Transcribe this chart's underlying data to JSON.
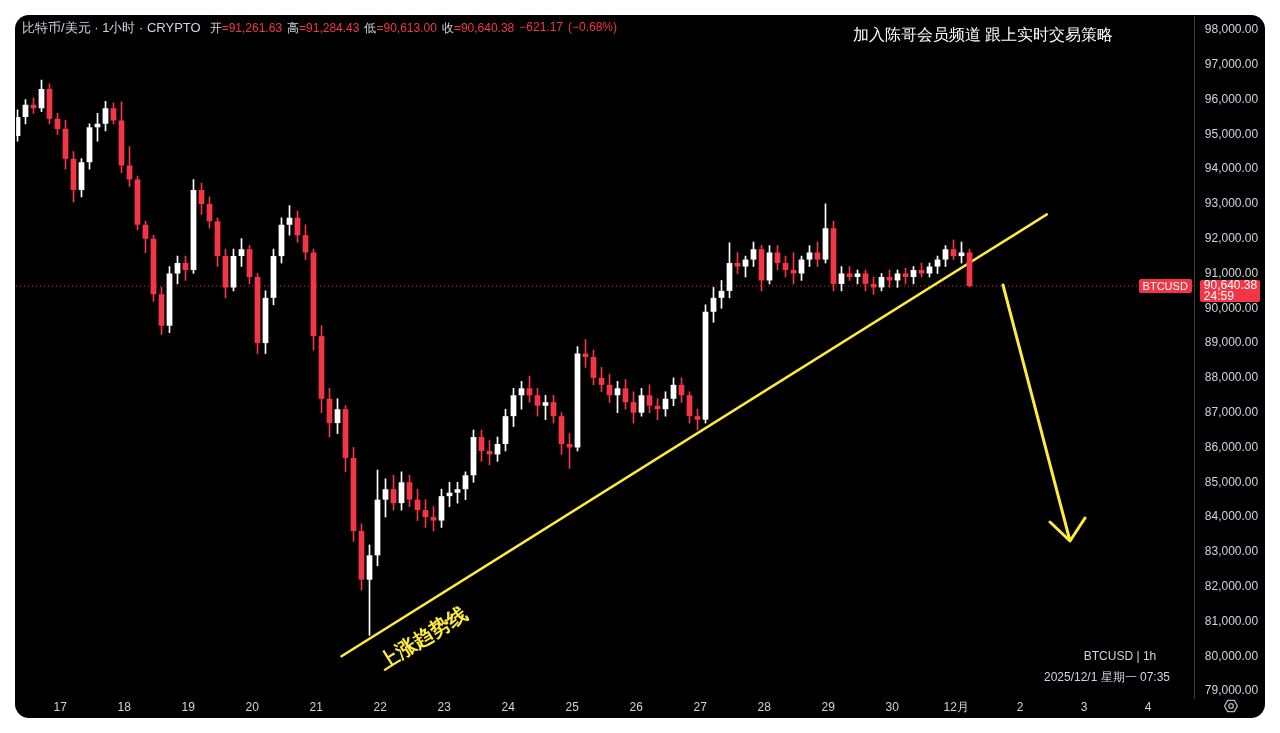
{
  "chart_data": {
    "type": "candlestick",
    "title": "比特币/美元 · 1小时 · CRYPTO",
    "subtitle": "开=91,261.63 高=91,284.43 低=90,613.00 收=90,640.38 −621.17 (−0.68%)",
    "x": [
      "2025-11-16T08:00",
      "2025-11-16T11:00",
      "2025-11-16T14:00",
      "2025-11-16T17:00",
      "2025-11-16T20:00",
      "2025-11-16T23:00",
      "2025-11-17T02:00",
      "2025-11-17T05:00",
      "2025-11-17T08:00",
      "2025-11-17T11:00",
      "2025-11-17T14:00",
      "2025-11-17T17:00",
      "2025-11-17T20:00",
      "2025-11-17T23:00",
      "2025-11-18T02:00",
      "2025-11-18T05:00",
      "2025-11-18T08:00",
      "2025-11-18T11:00",
      "2025-11-18T14:00",
      "2025-11-18T17:00",
      "2025-11-18T20:00",
      "2025-11-18T23:00",
      "2025-11-19T02:00",
      "2025-11-19T05:00",
      "2025-11-19T08:00",
      "2025-11-19T11:00",
      "2025-11-19T14:00",
      "2025-11-19T17:00",
      "2025-11-19T20:00",
      "2025-11-19T23:00",
      "2025-11-20T02:00",
      "2025-11-20T05:00",
      "2025-11-20T08:00",
      "2025-11-20T11:00",
      "2025-11-20T14:00",
      "2025-11-20T17:00",
      "2025-11-20T20:00",
      "2025-11-20T23:00",
      "2025-11-21T02:00",
      "2025-11-21T05:00",
      "2025-11-21T08:00",
      "2025-11-21T11:00",
      "2025-11-21T14:00",
      "2025-11-21T17:00",
      "2025-11-21T20:00",
      "2025-11-21T23:00",
      "2025-11-22T02:00",
      "2025-11-22T05:00",
      "2025-11-22T08:00",
      "2025-11-22T11:00",
      "2025-11-22T14:00",
      "2025-11-22T17:00",
      "2025-11-22T20:00",
      "2025-11-22T23:00",
      "2025-11-23T02:00",
      "2025-11-23T05:00",
      "2025-11-23T08:00",
      "2025-11-23T11:00",
      "2025-11-23T14:00",
      "2025-11-23T17:00",
      "2025-11-23T20:00",
      "2025-11-23T23:00",
      "2025-11-24T02:00",
      "2025-11-24T05:00",
      "2025-11-24T08:00",
      "2025-11-24T11:00",
      "2025-11-24T14:00",
      "2025-11-24T17:00",
      "2025-11-24T20:00",
      "2025-11-24T23:00",
      "2025-11-25T02:00",
      "2025-11-25T05:00",
      "2025-11-25T08:00",
      "2025-11-25T11:00",
      "2025-11-25T14:00",
      "2025-11-25T17:00",
      "2025-11-25T20:00",
      "2025-11-25T23:00",
      "2025-11-26T02:00",
      "2025-11-26T05:00",
      "2025-11-26T08:00",
      "2025-11-26T11:00",
      "2025-11-26T14:00",
      "2025-11-26T17:00",
      "2025-11-26T20:00",
      "2025-11-26T23:00",
      "2025-11-27T02:00",
      "2025-11-27T05:00",
      "2025-11-27T08:00",
      "2025-11-27T11:00",
      "2025-11-27T14:00",
      "2025-11-27T17:00",
      "2025-11-27T20:00",
      "2025-11-27T23:00",
      "2025-11-28T02:00",
      "2025-11-28T05:00",
      "2025-11-28T08:00",
      "2025-11-28T11:00",
      "2025-11-28T14:00",
      "2025-11-28T17:00",
      "2025-11-28T20:00",
      "2025-11-28T23:00",
      "2025-11-29T02:00",
      "2025-11-29T05:00",
      "2025-11-29T08:00",
      "2025-11-29T11:00",
      "2025-11-29T14:00",
      "2025-11-29T17:00",
      "2025-11-29T20:00",
      "2025-11-29T23:00",
      "2025-11-30T02:00",
      "2025-11-30T05:00",
      "2025-11-30T08:00",
      "2025-11-30T11:00",
      "2025-11-30T14:00",
      "2025-11-30T17:00",
      "2025-11-30T20:00",
      "2025-11-30T23:00",
      "2025-12-01T02:00",
      "2025-12-01T05:00"
    ],
    "ohlc": [
      [
        94950,
        95700,
        94800,
        95500
      ],
      [
        95500,
        96000,
        95300,
        95850
      ],
      [
        95850,
        96050,
        95600,
        95750
      ],
      [
        95750,
        96560,
        95650,
        96300
      ],
      [
        96300,
        96450,
        95300,
        95450
      ],
      [
        95450,
        95600,
        95000,
        95150
      ],
      [
        95150,
        95400,
        94000,
        94300
      ],
      [
        94300,
        94500,
        93050,
        93400
      ],
      [
        93400,
        94300,
        93200,
        94200
      ],
      [
        94200,
        95300,
        94000,
        95200
      ],
      [
        95200,
        95600,
        94800,
        95300
      ],
      [
        95300,
        95950,
        95100,
        95750
      ],
      [
        95750,
        95900,
        95300,
        95400
      ],
      [
        95400,
        95930,
        93900,
        94100
      ],
      [
        94100,
        94650,
        93500,
        93700
      ],
      [
        93700,
        93800,
        92250,
        92400
      ],
      [
        92400,
        92500,
        91600,
        92000
      ],
      [
        92000,
        92100,
        90200,
        90400
      ],
      [
        90400,
        90600,
        89250,
        89500
      ],
      [
        89500,
        91200,
        89300,
        91000
      ],
      [
        91000,
        91500,
        90700,
        91300
      ],
      [
        91300,
        91500,
        90800,
        91100
      ],
      [
        91100,
        93700,
        91000,
        93400
      ],
      [
        93400,
        93600,
        92700,
        93000
      ],
      [
        93000,
        93200,
        92300,
        92500
      ],
      [
        92500,
        92600,
        91200,
        91500
      ],
      [
        91500,
        91700,
        90300,
        90600
      ],
      [
        90600,
        91700,
        90500,
        91500
      ],
      [
        91500,
        92000,
        91200,
        91700
      ],
      [
        91700,
        91800,
        90700,
        90900
      ],
      [
        90900,
        91000,
        88700,
        89000
      ],
      [
        89000,
        90500,
        88700,
        90300
      ],
      [
        90300,
        91700,
        90100,
        91500
      ],
      [
        91500,
        92600,
        91300,
        92400
      ],
      [
        92400,
        92950,
        92100,
        92600
      ],
      [
        92600,
        92800,
        91900,
        92100
      ],
      [
        92100,
        92400,
        91400,
        91600
      ],
      [
        91600,
        91700,
        88800,
        89200
      ],
      [
        89200,
        89500,
        87000,
        87400
      ],
      [
        87400,
        87700,
        86300,
        86700
      ],
      [
        86700,
        87400,
        86400,
        87100
      ],
      [
        87100,
        87200,
        85300,
        85700
      ],
      [
        85700,
        86000,
        83300,
        83600
      ],
      [
        83600,
        83800,
        81900,
        82200
      ],
      [
        82200,
        83200,
        80600,
        82900
      ],
      [
        82900,
        85350,
        82600,
        84500
      ],
      [
        84500,
        85100,
        84000,
        84800
      ],
      [
        84800,
        85200,
        84200,
        84400
      ],
      [
        84400,
        85300,
        84200,
        85000
      ],
      [
        85000,
        85200,
        84300,
        84500
      ],
      [
        84500,
        84800,
        83900,
        84200
      ],
      [
        84200,
        84500,
        83700,
        84000
      ],
      [
        84000,
        84300,
        83600,
        83900
      ],
      [
        83900,
        84800,
        83700,
        84600
      ],
      [
        84600,
        85000,
        84300,
        84700
      ],
      [
        84700,
        85000,
        84400,
        84800
      ],
      [
        84800,
        85300,
        84500,
        85200
      ],
      [
        85200,
        86500,
        85000,
        86300
      ],
      [
        86300,
        86500,
        85600,
        85900
      ],
      [
        85900,
        86200,
        85500,
        85800
      ],
      [
        85800,
        86300,
        85600,
        86100
      ],
      [
        86100,
        87100,
        85900,
        86900
      ],
      [
        86900,
        87700,
        86600,
        87500
      ],
      [
        87500,
        87900,
        87100,
        87700
      ],
      [
        87700,
        88050,
        87300,
        87500
      ],
      [
        87500,
        87700,
        86900,
        87200
      ],
      [
        87200,
        87500,
        86800,
        87300
      ],
      [
        87300,
        87500,
        86700,
        86900
      ],
      [
        86900,
        87000,
        85800,
        86100
      ],
      [
        86100,
        86400,
        85400,
        86000
      ],
      [
        86000,
        88900,
        85900,
        88700
      ],
      [
        88700,
        89100,
        88300,
        88600
      ],
      [
        88600,
        88800,
        87800,
        88000
      ],
      [
        88000,
        88300,
        87600,
        87800
      ],
      [
        87800,
        88100,
        87300,
        87500
      ],
      [
        87500,
        87900,
        87000,
        87700
      ],
      [
        87700,
        87950,
        87100,
        87300
      ],
      [
        87300,
        87600,
        86700,
        87000
      ],
      [
        87000,
        87700,
        86900,
        87500
      ],
      [
        87500,
        87800,
        87000,
        87200
      ],
      [
        87200,
        87400,
        86800,
        87100
      ],
      [
        87100,
        87600,
        86900,
        87400
      ],
      [
        87400,
        88000,
        87200,
        87800
      ],
      [
        87800,
        88000,
        87300,
        87500
      ],
      [
        87500,
        87600,
        86700,
        86900
      ],
      [
        86900,
        87100,
        86500,
        86800
      ],
      [
        86800,
        90100,
        86700,
        89900
      ],
      [
        89900,
        90600,
        89600,
        90300
      ],
      [
        90300,
        90800,
        90000,
        90500
      ],
      [
        90500,
        91880,
        90300,
        91300
      ],
      [
        91300,
        91600,
        91000,
        91200
      ],
      [
        91200,
        91500,
        90900,
        91400
      ],
      [
        91400,
        91900,
        91200,
        91700
      ],
      [
        91700,
        91800,
        90500,
        90800
      ],
      [
        90800,
        91800,
        90700,
        91600
      ],
      [
        91600,
        91800,
        91100,
        91300
      ],
      [
        91300,
        91500,
        90900,
        91100
      ],
      [
        91100,
        91600,
        90700,
        91000
      ],
      [
        91000,
        91500,
        90800,
        91400
      ],
      [
        91400,
        91800,
        91200,
        91600
      ],
      [
        91600,
        91900,
        91200,
        91400
      ],
      [
        91400,
        93000,
        91300,
        92300
      ],
      [
        92300,
        92500,
        90500,
        90700
      ],
      [
        90700,
        91200,
        90500,
        91000
      ],
      [
        91000,
        91200,
        90800,
        90900
      ],
      [
        90900,
        91100,
        90700,
        91000
      ],
      [
        91000,
        91100,
        90500,
        90700
      ],
      [
        90700,
        90900,
        90400,
        90600
      ],
      [
        90600,
        91000,
        90500,
        90900
      ],
      [
        90900,
        91100,
        90600,
        90800
      ],
      [
        90800,
        91100,
        90600,
        91000
      ],
      [
        91000,
        91150,
        90700,
        90900
      ],
      [
        90900,
        91200,
        90700,
        91100
      ],
      [
        91100,
        91300,
        90900,
        91000
      ],
      [
        91000,
        91300,
        90900,
        91200
      ],
      [
        91200,
        91500,
        91000,
        91400
      ],
      [
        91400,
        91800,
        91200,
        91700
      ],
      [
        91700,
        91970,
        91400,
        91500
      ],
      [
        91500,
        91900,
        91300,
        91600
      ],
      [
        91600,
        91700,
        90613,
        90640.38
      ]
    ],
    "colors": [
      "#ffffff",
      "#ffffff",
      "#f23645",
      "#ffffff",
      "#f23645",
      "#f23645",
      "#f23645",
      "#f23645",
      "#ffffff",
      "#ffffff",
      "#ffffff",
      "#ffffff",
      "#f23645",
      "#f23645",
      "#f23645",
      "#f23645",
      "#f23645",
      "#f23645",
      "#f23645",
      "#ffffff",
      "#ffffff",
      "#f23645",
      "#ffffff",
      "#f23645",
      "#f23645",
      "#f23645",
      "#f23645",
      "#ffffff",
      "#ffffff",
      "#f23645",
      "#f23645",
      "#ffffff",
      "#ffffff",
      "#ffffff",
      "#ffffff",
      "#f23645",
      "#f23645",
      "#f23645",
      "#f23645",
      "#f23645",
      "#ffffff",
      "#f23645",
      "#f23645",
      "#f23645",
      "#ffffff",
      "#ffffff",
      "#ffffff",
      "#f23645",
      "#ffffff",
      "#f23645",
      "#f23645",
      "#f23645",
      "#f23645",
      "#ffffff",
      "#ffffff",
      "#ffffff",
      "#ffffff",
      "#ffffff",
      "#f23645",
      "#f23645",
      "#ffffff",
      "#ffffff",
      "#ffffff",
      "#ffffff",
      "#f23645",
      "#f23645",
      "#ffffff",
      "#f23645",
      "#f23645",
      "#f23645",
      "#ffffff",
      "#f23645",
      "#f23645",
      "#f23645",
      "#f23645",
      "#ffffff",
      "#f23645",
      "#f23645",
      "#ffffff",
      "#f23645",
      "#f23645",
      "#ffffff",
      "#ffffff",
      "#f23645",
      "#f23645",
      "#f23645",
      "#ffffff",
      "#ffffff",
      "#ffffff",
      "#ffffff",
      "#f23645",
      "#ffffff",
      "#ffffff",
      "#f23645",
      "#ffffff",
      "#f23645",
      "#f23645",
      "#f23645",
      "#ffffff",
      "#ffffff",
      "#f23645",
      "#ffffff",
      "#f23645",
      "#ffffff",
      "#f23645",
      "#ffffff",
      "#f23645",
      "#f23645",
      "#ffffff",
      "#f23645",
      "#ffffff",
      "#f23645",
      "#ffffff",
      "#f23645",
      "#ffffff",
      "#ffffff",
      "#ffffff",
      "#f23645",
      "#ffffff",
      "#f23645"
    ],
    "series": [
      {
        "type": "line",
        "name": "上涨趋势线",
        "color": "#ffeb3b",
        "x": [
          "2025-11-21T09:30",
          "2025-12-02T10:00"
        ],
        "values": [
          80000,
          92700
        ]
      }
    ],
    "marker": "none",
    "xlim": [
      "2025-11-16T07:30",
      "2025-12-04T17:30"
    ],
    "xticks": [
      {
        "value": "2025-11-17",
        "label": "17"
      },
      {
        "value": "2025-11-18",
        "label": "18"
      },
      {
        "value": "2025-11-19",
        "label": "19"
      },
      {
        "value": "2025-11-20",
        "label": "20"
      },
      {
        "value": "2025-11-21",
        "label": "21"
      },
      {
        "value": "2025-11-22",
        "label": "22"
      },
      {
        "value": "2025-11-23",
        "label": "23"
      },
      {
        "value": "2025-11-24",
        "label": "24"
      },
      {
        "value": "2025-11-25",
        "label": "25"
      },
      {
        "value": "2025-11-26",
        "label": "26"
      },
      {
        "value": "2025-11-27",
        "label": "27"
      },
      {
        "value": "2025-11-28",
        "label": "28"
      },
      {
        "value": "2025-11-29",
        "label": "29"
      },
      {
        "value": "2025-11-30",
        "label": "30"
      },
      {
        "value": "2025-12-01",
        "label": "12月"
      },
      {
        "value": "2025-12-02",
        "label": "2"
      },
      {
        "value": "2025-12-03",
        "label": "3"
      },
      {
        "value": "2025-12-04",
        "label": "4"
      }
    ],
    "ylim": [
      78800,
      98400
    ],
    "yticks": [
      {
        "value": 79000,
        "label": "79,000.00"
      },
      {
        "value": 80000,
        "label": "80,000.00"
      },
      {
        "value": 81000,
        "label": "81,000.00"
      },
      {
        "value": 82000,
        "label": "82,000.00"
      },
      {
        "value": 83000,
        "label": "83,000.00"
      },
      {
        "value": 84000,
        "label": "84,000.00"
      },
      {
        "value": 85000,
        "label": "85,000.00"
      },
      {
        "value": 86000,
        "label": "86,000.00"
      },
      {
        "value": 87000,
        "label": "87,000.00"
      },
      {
        "value": 88000,
        "label": "88,000.00"
      },
      {
        "value": 89000,
        "label": "89,000.00"
      },
      {
        "value": 90000,
        "label": "90,000.00"
      },
      {
        "value": 91000,
        "label": "91,000.00"
      },
      {
        "value": 92000,
        "label": "92,000.00"
      },
      {
        "value": 93000,
        "label": "93,000.00"
      },
      {
        "value": 94000,
        "label": "94,000.00"
      },
      {
        "value": 95000,
        "label": "95,000.00"
      },
      {
        "value": 96000,
        "label": "96,000.00"
      },
      {
        "value": 97000,
        "label": "97,000.00"
      },
      {
        "value": 98000,
        "label": "98,000.00"
      }
    ],
    "ref_lines": [
      {
        "axis": "y",
        "value": 90640.38,
        "label": "BTCUSD",
        "color": "#f23645",
        "line_style": "dotted"
      }
    ],
    "annotations": [
      "加入陈哥会员频道 跟上实时交易策略",
      "90,640.38",
      "24:59",
      "BTCUSD | 1h",
      "2025/12/1 星期一 07:35"
    ]
  }
}
